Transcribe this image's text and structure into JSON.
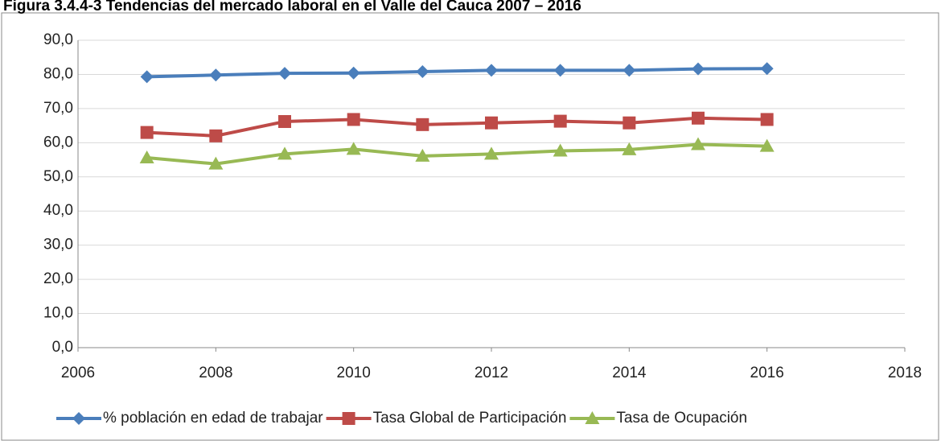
{
  "chart_data": {
    "type": "line",
    "title": "Figura 3.4.4-3 Tendencias del mercado laboral en el Valle del Cauca 2007 – 2016",
    "x": [
      2007,
      2008,
      2009,
      2010,
      2011,
      2012,
      2013,
      2014,
      2015,
      2016
    ],
    "series": [
      {
        "name": "% población en edad de trabajar",
        "color": "#4a7ebb",
        "marker": "diamond",
        "values": [
          79.3,
          79.8,
          80.3,
          80.4,
          80.8,
          81.2,
          81.2,
          81.2,
          81.6,
          81.7
        ]
      },
      {
        "name": "Tasa Global de Participación",
        "color": "#be4b48",
        "marker": "square",
        "values": [
          63.0,
          62.0,
          66.2,
          66.8,
          65.3,
          65.8,
          66.3,
          65.8,
          67.2,
          66.8
        ]
      },
      {
        "name": "Tasa de Ocupación",
        "color": "#98b954",
        "marker": "triangle",
        "values": [
          55.6,
          53.8,
          56.7,
          58.1,
          56.1,
          56.7,
          57.6,
          58.0,
          59.5,
          59.0
        ]
      }
    ],
    "xlim": [
      2006,
      2018
    ],
    "xticks": [
      2006,
      2008,
      2010,
      2012,
      2014,
      2016,
      2018
    ],
    "ylim": [
      0,
      90
    ],
    "yticks": [
      {
        "value": 0,
        "label": "0,0"
      },
      {
        "value": 10,
        "label": "10,0"
      },
      {
        "value": 20,
        "label": "20,0"
      },
      {
        "value": 30,
        "label": "30,0"
      },
      {
        "value": 40,
        "label": "40,0"
      },
      {
        "value": 50,
        "label": "50,0"
      },
      {
        "value": 60,
        "label": "60,0"
      },
      {
        "value": 70,
        "label": "70,0"
      },
      {
        "value": 80,
        "label": "80,0"
      },
      {
        "value": 90,
        "label": "90,0"
      }
    ],
    "grid": true,
    "legend": "bottom"
  }
}
